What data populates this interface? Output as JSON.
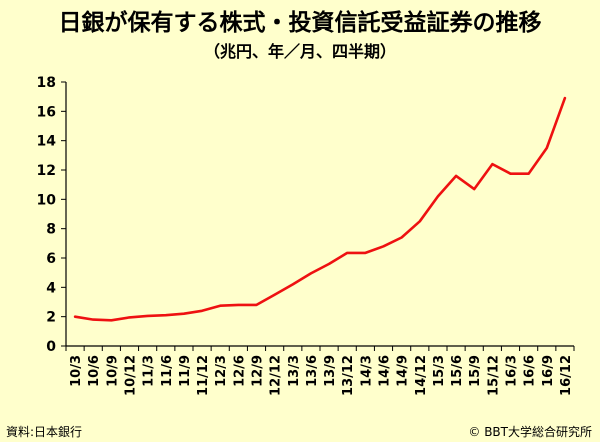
{
  "chart_data": {
    "type": "line",
    "title": "日銀が保有する株式・投資信託受益証券の推移",
    "subtitle": "（兆円、年／月、四半期）",
    "ylim": [
      0,
      18
    ],
    "yticks": [
      0,
      2,
      4,
      6,
      8,
      10,
      12,
      14,
      16,
      18
    ],
    "grid": false,
    "categories": [
      "10/3",
      "10/6",
      "10/9",
      "10/12",
      "11/3",
      "11/6",
      "11/9",
      "11/12",
      "12/3",
      "12/6",
      "12/9",
      "12/12",
      "13/3",
      "13/6",
      "13/9",
      "13/12",
      "14/3",
      "14/6",
      "14/9",
      "14/12",
      "15/3",
      "15/6",
      "15/9",
      "15/12",
      "16/3",
      "16/6",
      "16/9",
      "16/12"
    ],
    "series": [
      {
        "color": "#ee1111",
        "values": [
          2.0,
          1.8,
          1.75,
          1.95,
          2.05,
          2.1,
          2.2,
          2.4,
          2.75,
          2.8,
          2.8,
          3.5,
          4.2,
          4.95,
          5.6,
          6.35,
          6.35,
          6.8,
          7.4,
          8.5,
          10.2,
          11.6,
          10.7,
          12.4,
          11.75,
          11.75,
          13.5,
          16.9
        ]
      }
    ]
  },
  "footer": {
    "source": "資料:日本銀行",
    "credit": "© BBT大学総合研究所"
  }
}
